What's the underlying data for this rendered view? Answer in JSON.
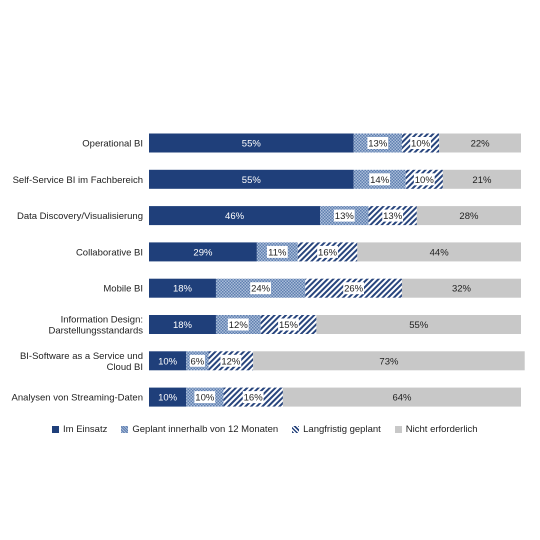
{
  "chart_data": {
    "type": "bar",
    "orientation": "horizontal",
    "stacked": true,
    "xlim": [
      0,
      100
    ],
    "grid": false,
    "legend_position": "bottom",
    "categories": [
      [
        "Operational BI"
      ],
      [
        "Self-Service BI im Fachbereich"
      ],
      [
        "Data Discovery/Visualisierung"
      ],
      [
        "Collaborative BI"
      ],
      [
        "Mobile BI"
      ],
      [
        "Information Design:",
        "Darstellungsstandards"
      ],
      [
        "BI-Software as a Service und",
        "Cloud BI"
      ],
      [
        "Analysen von Streaming-Daten"
      ]
    ],
    "series": [
      {
        "name": "Im Einsatz",
        "values": [
          55,
          55,
          46,
          29,
          18,
          18,
          10,
          10
        ],
        "color": "#1f3f7a",
        "pattern": "solid"
      },
      {
        "name": "Geplant innerhalb von 12 Monaten",
        "values": [
          13,
          14,
          13,
          11,
          24,
          12,
          6,
          10
        ],
        "color": "#7d9ac4",
        "pattern": "dots"
      },
      {
        "name": "Langfristig geplant",
        "values": [
          10,
          10,
          13,
          16,
          26,
          15,
          12,
          16
        ],
        "color": "#28457d",
        "pattern": "diagonal"
      },
      {
        "name": "Nicht erforderlich",
        "values": [
          22,
          21,
          28,
          44,
          32,
          55,
          73,
          64
        ],
        "color": "#c8c8c8",
        "pattern": "solid"
      }
    ],
    "value_suffix": "%"
  }
}
